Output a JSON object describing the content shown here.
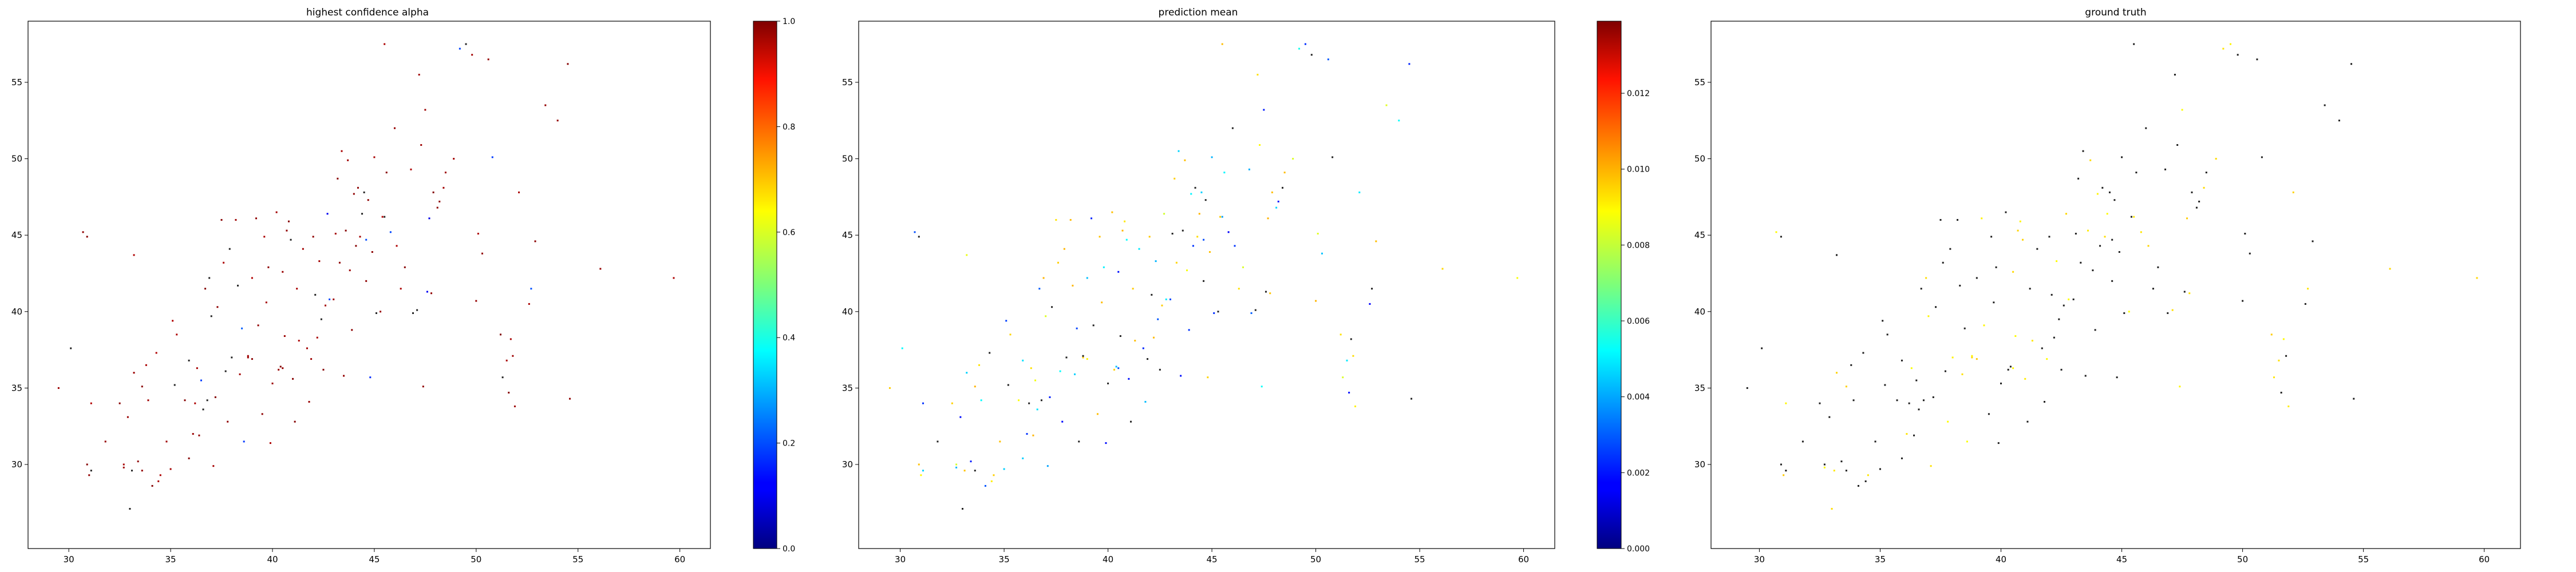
{
  "chart_data": [
    {
      "type": "scatter",
      "title": "highest confidence alpha",
      "xlim": [
        28,
        61.5
      ],
      "ylim": [
        24.5,
        59
      ],
      "xticks": [
        "30",
        "35",
        "40",
        "45",
        "50",
        "55",
        "60"
      ],
      "yticks": [
        "30",
        "35",
        "40",
        "45",
        "50",
        "55"
      ],
      "colorbar": {
        "colormap": "jet",
        "range": [
          0,
          1
        ],
        "ticks": [
          "0.0",
          "0.2",
          "0.4",
          "0.6",
          "0.8",
          "1.0"
        ]
      },
      "color_rule": "mostly_high",
      "grid": false,
      "marker_size": "tiny"
    },
    {
      "type": "scatter",
      "title": "prediction mean",
      "xlim": [
        28,
        61.5
      ],
      "ylim": [
        24.5,
        59
      ],
      "xticks": [
        "30",
        "35",
        "40",
        "45",
        "50",
        "55",
        "60"
      ],
      "yticks": [
        "30",
        "35",
        "40",
        "45",
        "50",
        "55"
      ],
      "colorbar": {
        "colormap": "jet",
        "range": [
          0,
          0.0139
        ],
        "ticks": [
          "0.000",
          "0.002",
          "0.004",
          "0.006",
          "0.008",
          "0.010",
          "0.012"
        ]
      },
      "color_rule": "mixed",
      "grid": false,
      "marker_size": "tiny"
    },
    {
      "type": "scatter",
      "title": "ground truth",
      "xlim": [
        28,
        61.5
      ],
      "ylim": [
        24.5,
        59
      ],
      "xticks": [
        "30",
        "35",
        "40",
        "45",
        "50",
        "55",
        "60"
      ],
      "yticks": [
        "30",
        "35",
        "40",
        "45",
        "50",
        "55"
      ],
      "color_rule": "mostly_dark",
      "grid": false,
      "marker_size": "tiny"
    }
  ],
  "points": [
    [
      29.5,
      35
    ],
    [
      30.1,
      37.6
    ],
    [
      30.7,
      45.2
    ],
    [
      30.9,
      44.9
    ],
    [
      30.9,
      30
    ],
    [
      31,
      29.3
    ],
    [
      31.1,
      29.6
    ],
    [
      31.1,
      34
    ],
    [
      31.8,
      31.5
    ],
    [
      32.5,
      34
    ],
    [
      32.7,
      30
    ],
    [
      32.7,
      29.8
    ],
    [
      32.9,
      33.1
    ],
    [
      33,
      27.1
    ],
    [
      33.1,
      29.6
    ],
    [
      33.2,
      43.7
    ],
    [
      33.2,
      36
    ],
    [
      33.4,
      30.2
    ],
    [
      33.6,
      29.6
    ],
    [
      33.6,
      35.1
    ],
    [
      33.8,
      36.5
    ],
    [
      33.9,
      34.2
    ],
    [
      34.1,
      28.6
    ],
    [
      34.3,
      37.3
    ],
    [
      34.5,
      29.3
    ],
    [
      34.8,
      31.5
    ],
    [
      35,
      29.7
    ],
    [
      35.1,
      39.4
    ],
    [
      35.2,
      35.2
    ],
    [
      35.3,
      38.5
    ],
    [
      35.7,
      34.2
    ],
    [
      35.9,
      30.4
    ],
    [
      36.1,
      32
    ],
    [
      36.2,
      34
    ],
    [
      36.3,
      36.3
    ],
    [
      36.5,
      35.5
    ],
    [
      36.6,
      33.6
    ],
    [
      36.7,
      41.5
    ],
    [
      36.8,
      34.2
    ],
    [
      36.9,
      42.2
    ],
    [
      37,
      39.7
    ],
    [
      37.1,
      29.9
    ],
    [
      37.2,
      34.4
    ],
    [
      37.3,
      40.3
    ],
    [
      37.5,
      46
    ],
    [
      37.6,
      43.2
    ],
    [
      37.7,
      36.1
    ],
    [
      37.8,
      32.8
    ],
    [
      38,
      37
    ],
    [
      38.2,
      46
    ],
    [
      38.3,
      41.7
    ],
    [
      38.4,
      35.9
    ],
    [
      38.5,
      38.9
    ],
    [
      38.6,
      31.5
    ],
    [
      38.8,
      37
    ],
    [
      39,
      36.9
    ],
    [
      39,
      42.2
    ],
    [
      39.2,
      46.1
    ],
    [
      39.3,
      39.1
    ],
    [
      39.5,
      33.3
    ],
    [
      39.6,
      44.9
    ],
    [
      39.8,
      42.9
    ],
    [
      39.9,
      31.4
    ],
    [
      40,
      35.3
    ],
    [
      40.2,
      46.5
    ],
    [
      40.3,
      36.2
    ],
    [
      40.4,
      36.4
    ],
    [
      40.5,
      42.6
    ],
    [
      40.6,
      38.4
    ],
    [
      40.7,
      45.3
    ],
    [
      40.8,
      45.9
    ],
    [
      40.9,
      44.7
    ],
    [
      41,
      35.6
    ],
    [
      41.1,
      32.8
    ],
    [
      41.2,
      41.5
    ],
    [
      41.3,
      38.1
    ],
    [
      41.5,
      44.1
    ],
    [
      41.7,
      37.6
    ],
    [
      41.9,
      36.9
    ],
    [
      42,
      44.9
    ],
    [
      42.2,
      38.3
    ],
    [
      42.3,
      43.3
    ],
    [
      42.4,
      39.5
    ],
    [
      42.5,
      36.2
    ],
    [
      42.6,
      40.4
    ],
    [
      42.7,
      46.4
    ],
    [
      42.8,
      40.8
    ],
    [
      43,
      40.8
    ],
    [
      43.1,
      45.1
    ],
    [
      43.2,
      48.7
    ],
    [
      43.3,
      43.2
    ],
    [
      43.4,
      50.5
    ],
    [
      43.5,
      35.8
    ],
    [
      43.6,
      45.3
    ],
    [
      43.7,
      49.9
    ],
    [
      43.8,
      42.7
    ],
    [
      44,
      47.7
    ],
    [
      44.1,
      44.3
    ],
    [
      44.2,
      48.1
    ],
    [
      44.3,
      44.9
    ],
    [
      44.4,
      46.4
    ],
    [
      44.5,
      47.8
    ],
    [
      44.6,
      44.7
    ],
    [
      44.7,
      47.3
    ],
    [
      44.8,
      35.7
    ],
    [
      44.9,
      43.9
    ],
    [
      45,
      50.1
    ],
    [
      45.1,
      39.9
    ],
    [
      45.3,
      40
    ],
    [
      45.4,
      46.2
    ],
    [
      45.5,
      57.5
    ],
    [
      45.6,
      49.1
    ],
    [
      45.8,
      45.2
    ],
    [
      46,
      52
    ],
    [
      46.3,
      41.5
    ],
    [
      46.5,
      42.9
    ],
    [
      46.8,
      49.3
    ],
    [
      46.9,
      39.9
    ],
    [
      47.1,
      40.1
    ],
    [
      47.2,
      55.5
    ],
    [
      47.3,
      50.9
    ],
    [
      47.4,
      35.1
    ],
    [
      47.5,
      53.2
    ],
    [
      47.6,
      41.3
    ],
    [
      47.8,
      41.2
    ],
    [
      47.9,
      47.8
    ],
    [
      48.1,
      46.8
    ],
    [
      48.2,
      47.2
    ],
    [
      48.4,
      48.1
    ],
    [
      48.5,
      49.1
    ],
    [
      48.9,
      50
    ],
    [
      49.2,
      57.2
    ],
    [
      49.5,
      57.5
    ],
    [
      49.8,
      56.8
    ],
    [
      50,
      40.7
    ],
    [
      50.1,
      45.1
    ],
    [
      50.3,
      43.8
    ],
    [
      50.6,
      56.5
    ],
    [
      50.8,
      50.1
    ],
    [
      51.2,
      38.5
    ],
    [
      51.3,
      35.7
    ],
    [
      51.5,
      36.8
    ],
    [
      51.6,
      34.7
    ],
    [
      51.7,
      38.2
    ],
    [
      51.8,
      37.1
    ],
    [
      51.9,
      33.8
    ],
    [
      52.1,
      47.8
    ],
    [
      52.6,
      40.5
    ],
    [
      52.7,
      41.5
    ],
    [
      52.9,
      44.6
    ],
    [
      53.4,
      53.5
    ],
    [
      54,
      52.5
    ],
    [
      54.5,
      56.2
    ],
    [
      54.6,
      34.3
    ],
    [
      56.1,
      42.8
    ],
    [
      59.7,
      42.2
    ],
    [
      45.5,
      46.2
    ],
    [
      40.5,
      36.3
    ],
    [
      38.8,
      37.1
    ],
    [
      36.4,
      31.9
    ],
    [
      34.4,
      28.9
    ],
    [
      41.8,
      34.1
    ],
    [
      43.9,
      38.8
    ],
    [
      42.1,
      41.1
    ],
    [
      39.7,
      40.6
    ],
    [
      37.9,
      44.1
    ],
    [
      35.9,
      36.8
    ],
    [
      46.1,
      44.3
    ],
    [
      44.6,
      42
    ],
    [
      47.7,
      46.1
    ]
  ]
}
